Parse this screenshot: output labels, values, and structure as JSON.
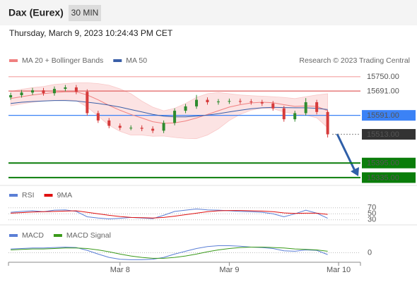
{
  "header": {
    "title": "Dax (Eurex)",
    "interval": "30 MIN",
    "datetime": "Thursday, March 9, 2023 10:24:43 PM CET"
  },
  "chart_data": [
    {
      "type": "candlestick",
      "credit": "Research © 2023 Trading Central",
      "x": [
        0,
        1,
        2,
        3,
        4,
        5,
        6,
        7,
        8,
        9,
        10,
        11,
        12,
        13,
        14,
        15,
        16,
        17,
        18,
        19,
        20,
        21,
        22,
        23,
        24,
        25,
        26,
        27,
        28,
        29
      ],
      "open": [
        15665,
        15674,
        15685,
        15694,
        15682,
        15700,
        15706,
        15688,
        15600,
        15570,
        15548,
        15540,
        15540,
        15536,
        15528,
        15560,
        15610,
        15628,
        15655,
        15645,
        15648,
        15650,
        15648,
        15645,
        15640,
        15620,
        15575,
        15600,
        15645,
        15605
      ],
      "high": [
        15684,
        15695,
        15704,
        15704,
        15710,
        15716,
        15716,
        15698,
        15610,
        15580,
        15558,
        15550,
        15550,
        15546,
        15570,
        15620,
        15638,
        15675,
        15665,
        15658,
        15660,
        15660,
        15658,
        15655,
        15650,
        15630,
        15610,
        15662,
        15655,
        15612
      ],
      "low": [
        15655,
        15664,
        15675,
        15672,
        15672,
        15690,
        15678,
        15590,
        15560,
        15538,
        15530,
        15530,
        15526,
        15518,
        15518,
        15550,
        15600,
        15618,
        15635,
        15635,
        15638,
        15638,
        15635,
        15630,
        15610,
        15565,
        15565,
        15590,
        15595,
        15500
      ],
      "close": [
        15674,
        15685,
        15694,
        15682,
        15700,
        15706,
        15688,
        15600,
        15570,
        15548,
        15540,
        15540,
        15536,
        15528,
        15560,
        15610,
        15628,
        15655,
        15645,
        15648,
        15650,
        15648,
        15645,
        15640,
        15620,
        15575,
        15600,
        15645,
        15605,
        15513
      ],
      "up_color": "#2e8b2e",
      "down_color": "#d63b3b",
      "series": [
        {
          "name": "MA 20 + Bollinger Bands",
          "color": "#f08080",
          "values": [
            15660,
            15668,
            15675,
            15680,
            15685,
            15688,
            15688,
            15675,
            15655,
            15632,
            15612,
            15595,
            15580,
            15565,
            15558,
            15560,
            15568,
            15580,
            15595,
            15610,
            15625,
            15635,
            15642,
            15645,
            15643,
            15635,
            15628,
            15630,
            15628,
            15610
          ],
          "upper": [
            15690,
            15698,
            15705,
            15710,
            15718,
            15722,
            15725,
            15725,
            15722,
            15715,
            15700,
            15680,
            15650,
            15625,
            15610,
            15620,
            15640,
            15665,
            15680,
            15685,
            15680,
            15675,
            15672,
            15670,
            15668,
            15665,
            15660,
            15668,
            15675,
            15680
          ],
          "lower": [
            15630,
            15638,
            15645,
            15650,
            15652,
            15655,
            15652,
            15625,
            15588,
            15550,
            15525,
            15510,
            15510,
            15505,
            15506,
            15500,
            15496,
            15495,
            15510,
            15535,
            15570,
            15595,
            15612,
            15620,
            15618,
            15605,
            15596,
            15592,
            15581,
            15540
          ]
        },
        {
          "name": "MA 50",
          "color": "#3a5fa8",
          "values": [
            15640,
            15645,
            15648,
            15650,
            15652,
            15652,
            15650,
            15645,
            15640,
            15633,
            15625,
            15615,
            15605,
            15595,
            15588,
            15585,
            15585,
            15588,
            15592,
            15598,
            15605,
            15612,
            15618,
            15622,
            15624,
            15623,
            15622,
            15622,
            15620,
            15615
          ]
        }
      ],
      "xlim": [
        -0.2,
        32
      ],
      "ylim": [
        15300,
        15790
      ],
      "yticks": [
        {
          "value": 15750,
          "label": "15750.00"
        },
        {
          "value": 15691,
          "label": "15691.00"
        },
        {
          "value": 15591,
          "label": "15591.00"
        },
        {
          "value": 15513,
          "label": "15513.00"
        },
        {
          "value": 15395,
          "label": "15395.00"
        },
        {
          "value": 15335,
          "label": "15335.00"
        }
      ],
      "ytick_colors": [
        "#f4a0a0",
        "#e06060",
        "#3b82f6",
        "#333333",
        "#0a7d0a",
        "#0a7d0a"
      ],
      "ytick_boxed": [
        false,
        false,
        true,
        true,
        true,
        true
      ],
      "ytick_dashed": [
        false,
        false,
        false,
        true,
        false,
        false
      ]
    },
    {
      "type": "line",
      "x": [
        0,
        1,
        2,
        3,
        4,
        5,
        6,
        7,
        8,
        9,
        10,
        11,
        12,
        13,
        14,
        15,
        16,
        17,
        18,
        19,
        20,
        21,
        22,
        23,
        24,
        25,
        26,
        27,
        28,
        29
      ],
      "series": [
        {
          "name": "RSI",
          "color": "#5b7fd6",
          "values": [
            55,
            58,
            60,
            57,
            62,
            63,
            58,
            40,
            36,
            33,
            35,
            38,
            36,
            34,
            45,
            58,
            62,
            66,
            63,
            62,
            60,
            58,
            57,
            55,
            50,
            40,
            50,
            62,
            52,
            35
          ]
        },
        {
          "name": "9MA",
          "color": "#e01010",
          "values": [
            52,
            54,
            56,
            57,
            58,
            59,
            60,
            55,
            50,
            45,
            41,
            38,
            37,
            36,
            38,
            42,
            47,
            52,
            57,
            60,
            61,
            61,
            60,
            59,
            57,
            53,
            51,
            52,
            52,
            48
          ]
        }
      ],
      "xlim": [
        -0.2,
        32
      ],
      "ylim": [
        20,
        140
      ],
      "yticks": [
        30,
        50,
        70
      ]
    },
    {
      "type": "line",
      "x": [
        0,
        1,
        2,
        3,
        4,
        5,
        6,
        7,
        8,
        9,
        10,
        11,
        12,
        13,
        14,
        15,
        16,
        17,
        18,
        19,
        20,
        21,
        22,
        23,
        24,
        25,
        26,
        27,
        28,
        29
      ],
      "series": [
        {
          "name": "MACD",
          "color": "#5b7fd6",
          "values": [
            8,
            9,
            10,
            10,
            11,
            12,
            11,
            5,
            -3,
            -10,
            -14,
            -15,
            -15,
            -14,
            -10,
            -3,
            3,
            9,
            13,
            15,
            15,
            14,
            12,
            11,
            9,
            4,
            3,
            6,
            5,
            -4
          ]
        },
        {
          "name": "MACD Signal",
          "color": "#3a9a1a",
          "values": [
            6,
            7,
            8,
            8,
            9,
            10,
            10,
            9,
            6,
            2,
            -3,
            -7,
            -10,
            -12,
            -12,
            -10,
            -7,
            -3,
            2,
            6,
            9,
            11,
            12,
            12,
            11,
            10,
            8,
            7,
            6,
            3
          ]
        }
      ],
      "xlim": [
        -0.2,
        32
      ],
      "ylim": [
        -25,
        55
      ],
      "yticks": [
        0
      ],
      "xticks": [
        {
          "value": 10,
          "label": "Mar 8"
        },
        {
          "value": 20,
          "label": "Mar 9"
        },
        {
          "value": 30,
          "label": "Mar 10"
        }
      ]
    }
  ]
}
